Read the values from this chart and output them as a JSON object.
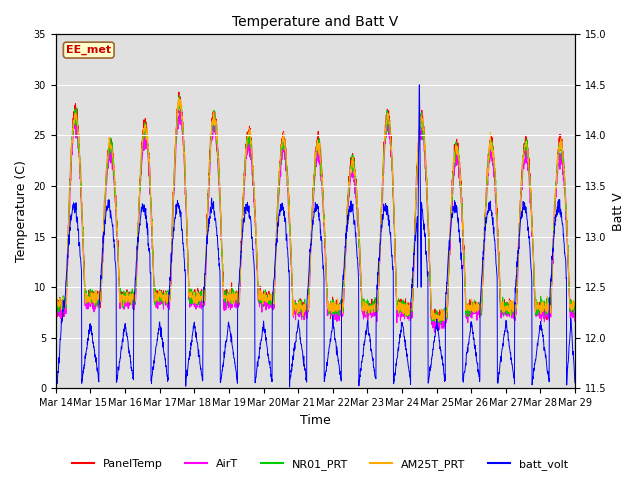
{
  "title": "Temperature and Batt V",
  "ylabel_left": "Temperature (C)",
  "ylabel_right": "Batt V",
  "xlabel": "Time",
  "annotation": "EE_met",
  "ylim_left": [
    0,
    35
  ],
  "ylim_right": [
    11.5,
    15.0
  ],
  "xtick_labels": [
    "Mar 14",
    "Mar 15",
    "Mar 16",
    "Mar 17",
    "Mar 18",
    "Mar 19",
    "Mar 20",
    "Mar 21",
    "Mar 22",
    "Mar 23",
    "Mar 24",
    "Mar 25",
    "Mar 26",
    "Mar 27",
    "Mar 28",
    "Mar 29"
  ],
  "background_color": "#ffffff",
  "plot_bg_color": "#e0e0e0",
  "legend_entries": [
    "PanelTemp",
    "AirT",
    "NR01_PRT",
    "AM25T_PRT",
    "batt_volt"
  ],
  "legend_colors": [
    "#ff0000",
    "#ff00ff",
    "#00cc00",
    "#ffaa00",
    "#0000ff"
  ],
  "grid_color": "#ffffff",
  "n_days": 15,
  "n_points_per_day": 144,
  "figsize": [
    6.4,
    4.8
  ],
  "dpi": 100
}
